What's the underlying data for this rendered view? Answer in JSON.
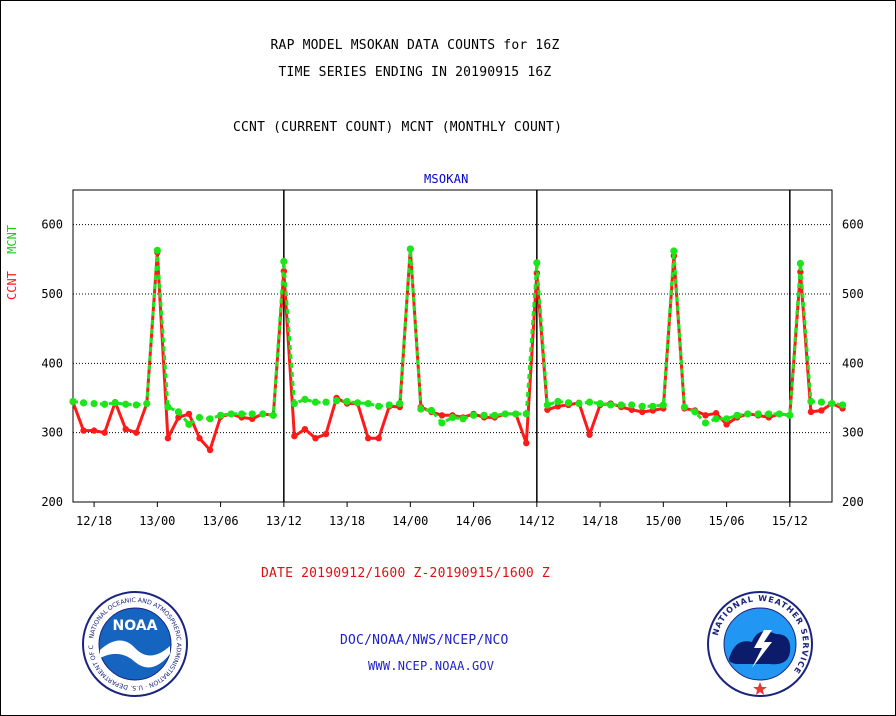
{
  "title_line1": "RAP MODEL MSOKAN DATA COUNTS for 16Z",
  "title_line2": "TIME SERIES ENDING IN 20190915 16Z",
  "title_line3": "CCNT (CURRENT COUNT) MCNT (MONTHLY COUNT)",
  "station_label": "MSOKAN",
  "date_range": "DATE 20190912/1600 Z-20190915/1600 Z",
  "credit_line1": "DOC/NOAA/NWS/NCEP/NCO",
  "credit_line2": "WWW.NCEP.NOAA.GOV",
  "logos": {
    "noaa_text": "NOAA",
    "noaa_ring": "NATIONAL OCEANIC AND ATMOSPHERIC ADMINISTRATION · U.S. DEPARTMENT OF COMMERCE",
    "nws_ring": "NATIONAL WEATHER SERVICE"
  },
  "chart_data": {
    "type": "line",
    "ylabel_ccnt": "CCNT",
    "ylabel_mcnt": "MCNT",
    "ylim": [
      200,
      650
    ],
    "yticks": [
      200,
      300,
      400,
      500,
      600
    ],
    "grid_values": [
      300,
      400,
      500,
      600
    ],
    "x_start_hour": 16,
    "x_step_hours": 1,
    "x_range_hours": [
      16,
      88
    ],
    "xticks": [
      {
        "hour": 18,
        "label": "12/18"
      },
      {
        "hour": 24,
        "label": "13/00"
      },
      {
        "hour": 30,
        "label": "13/06"
      },
      {
        "hour": 36,
        "label": "13/12"
      },
      {
        "hour": 42,
        "label": "13/18"
      },
      {
        "hour": 48,
        "label": "14/00"
      },
      {
        "hour": 54,
        "label": "14/06"
      },
      {
        "hour": 60,
        "label": "14/12"
      },
      {
        "hour": 66,
        "label": "14/18"
      },
      {
        "hour": 72,
        "label": "15/00"
      },
      {
        "hour": 78,
        "label": "15/06"
      },
      {
        "hour": 84,
        "label": "15/12"
      }
    ],
    "day_lines": [
      36,
      60,
      84
    ],
    "colors": {
      "ccnt": "#ff1a1a",
      "mcnt": "#1ae61a",
      "grid": "#000000",
      "axis_text": "#000000"
    },
    "series": [
      {
        "key": "ccnt",
        "values": [
          344,
          303,
          303,
          300,
          344,
          305,
          300,
          342,
          560,
          292,
          322,
          327,
          292,
          275,
          323,
          327,
          322,
          320,
          327,
          325,
          533,
          295,
          305,
          292,
          298,
          350,
          342,
          342,
          292,
          292,
          338,
          337,
          565,
          337,
          330,
          325,
          325,
          322,
          327,
          322,
          322,
          327,
          327,
          285,
          530,
          333,
          338,
          340,
          343,
          297,
          340,
          342,
          337,
          333,
          330,
          332,
          335,
          555,
          335,
          332,
          325,
          328,
          312,
          322,
          327,
          325,
          322,
          327,
          325,
          532,
          330,
          332,
          342,
          335
        ]
      },
      {
        "key": "mcnt",
        "values": [
          345,
          343,
          342,
          341,
          343,
          341,
          340,
          342,
          563,
          337,
          330,
          312,
          322,
          320,
          325,
          327,
          327,
          327,
          327,
          325,
          547,
          342,
          348,
          344,
          344,
          346,
          345,
          343,
          342,
          338,
          340,
          342,
          565,
          334,
          332,
          314,
          322,
          320,
          325,
          325,
          325,
          327,
          327,
          327,
          545,
          340,
          345,
          343,
          342,
          344,
          342,
          340,
          340,
          340,
          338,
          338,
          340,
          562,
          337,
          330,
          314,
          320,
          320,
          325,
          327,
          327,
          327,
          327,
          325,
          544,
          345,
          344,
          342,
          340
        ]
      }
    ]
  }
}
